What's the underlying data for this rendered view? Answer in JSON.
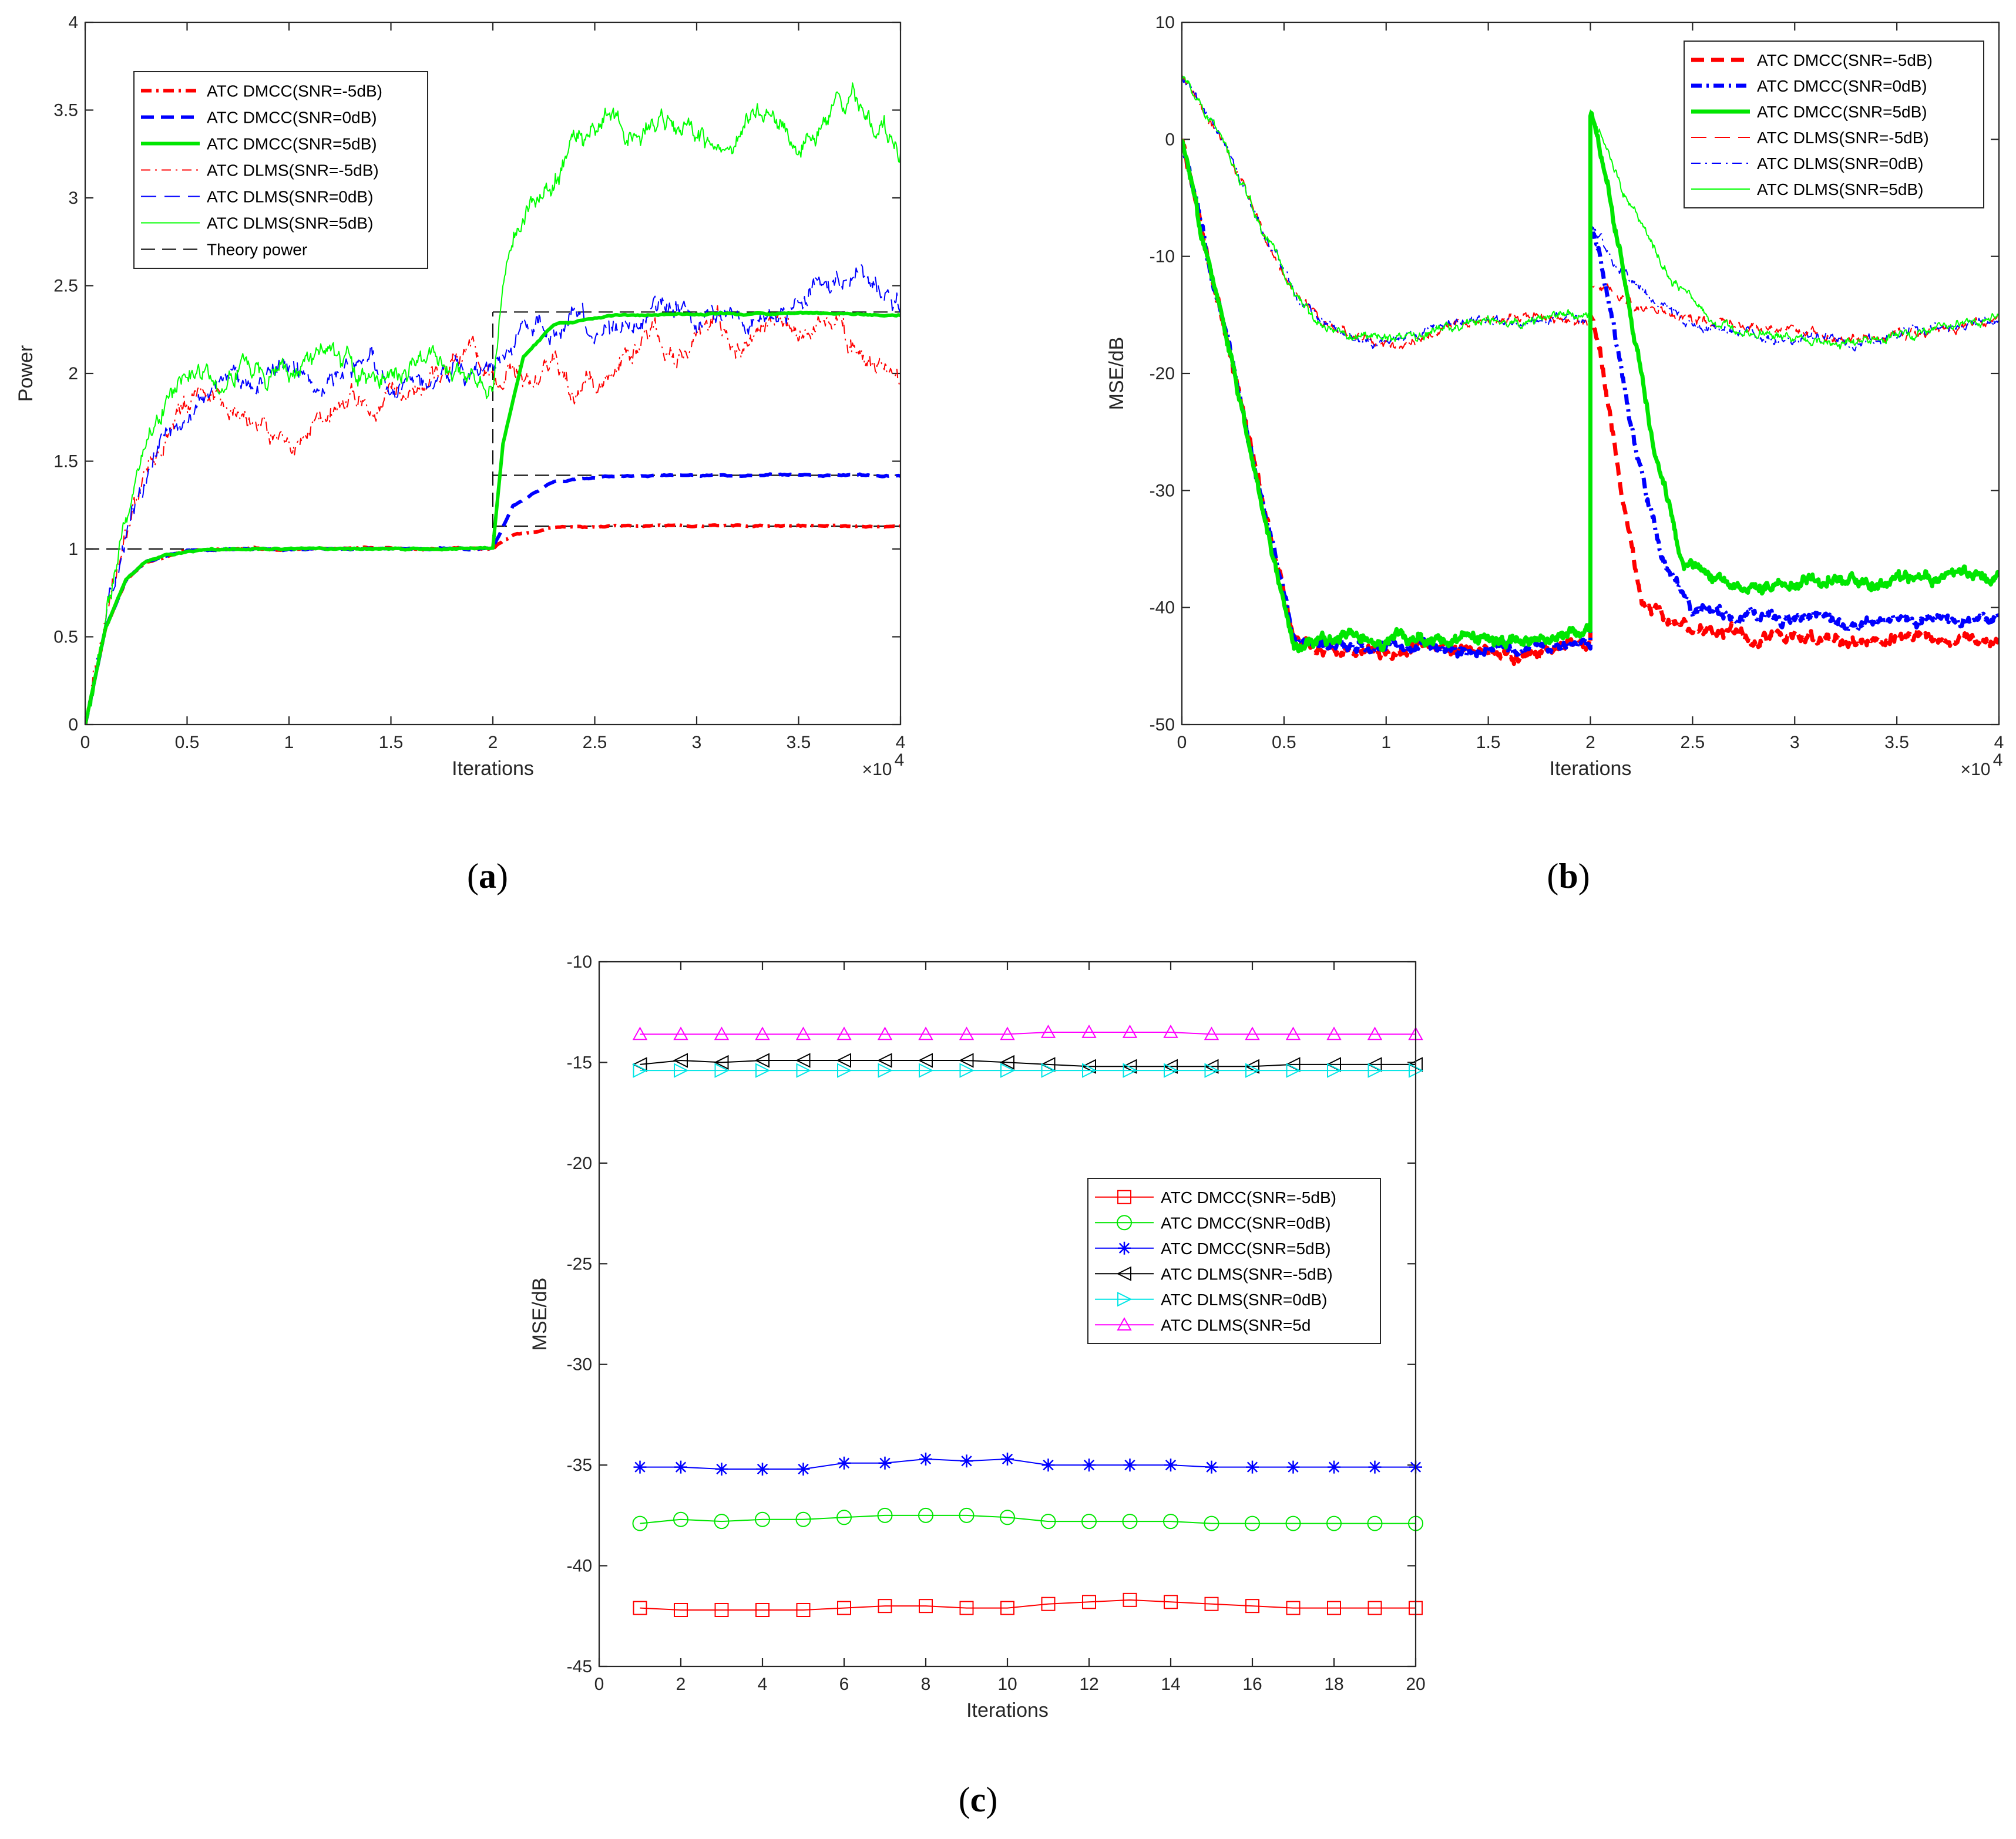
{
  "figure": {
    "panel_labels": [
      {
        "open": "(",
        "letter": "a",
        "close": ")"
      },
      {
        "open": "(",
        "letter": "b",
        "close": ")"
      },
      {
        "open": "(",
        "letter": "c",
        "close": ")"
      }
    ]
  },
  "colors": {
    "red": "#ff0000",
    "blue": "#0000ff",
    "green": "#00e600",
    "green_dlms": "#00ff00",
    "black": "#000000",
    "cyan": "#00e5e5",
    "magenta": "#ff00ff",
    "axis": "#262626"
  },
  "chart_data": [
    {
      "id": "a",
      "type": "line",
      "xlabel": "Iterations",
      "ylabel": "Power",
      "exponent_label": "×10",
      "exponent_power": "4",
      "xlim": [
        0,
        4
      ],
      "ylim": [
        0,
        4
      ],
      "xticks": [
        "0",
        "0.5",
        "1",
        "1.5",
        "2",
        "2.5",
        "3",
        "3.5",
        "4"
      ],
      "yticks": [
        "0",
        "0.5",
        "1",
        "1.5",
        "2",
        "2.5",
        "3",
        "3.5",
        "4"
      ],
      "legend_position": "top-left",
      "series": [
        {
          "name": "ATC DMCC(SNR=-5dB)",
          "color": "red",
          "style": "dashdot",
          "width": "bold",
          "x": [
            0,
            0.1,
            0.2,
            0.3,
            0.5,
            0.8,
            1.2,
            1.6,
            2.0,
            2.1,
            2.3,
            2.6,
            3.0,
            3.5,
            4.0
          ],
          "y": [
            0,
            0.55,
            0.82,
            0.93,
            0.99,
            1.0,
            1.0,
            1.0,
            1.0,
            1.08,
            1.12,
            1.13,
            1.13,
            1.13,
            1.13
          ]
        },
        {
          "name": "ATC DMCC(SNR=0dB)",
          "color": "blue",
          "style": "dashed",
          "width": "bold",
          "x": [
            0,
            0.1,
            0.2,
            0.3,
            0.5,
            0.8,
            1.2,
            1.6,
            2.0,
            2.1,
            2.3,
            2.6,
            3.0,
            3.5,
            4.0
          ],
          "y": [
            0,
            0.55,
            0.82,
            0.93,
            0.99,
            1.0,
            1.0,
            1.0,
            1.0,
            1.25,
            1.38,
            1.42,
            1.42,
            1.42,
            1.42
          ]
        },
        {
          "name": "ATC DMCC(SNR=5dB)",
          "color": "green",
          "style": "solid",
          "width": "bold",
          "x": [
            0,
            0.1,
            0.2,
            0.3,
            0.5,
            0.8,
            1.2,
            1.6,
            2.0,
            2.05,
            2.15,
            2.3,
            2.6,
            3.0,
            3.5,
            4.0
          ],
          "y": [
            0,
            0.55,
            0.82,
            0.93,
            0.99,
            1.0,
            1.0,
            1.0,
            1.0,
            1.6,
            2.1,
            2.28,
            2.33,
            2.34,
            2.34,
            2.33
          ]
        },
        {
          "name": "ATC DLMS(SNR=-5dB)",
          "color": "red",
          "style": "dashdot",
          "width": "thin",
          "x": [
            0,
            0.1,
            0.2,
            0.3,
            0.4,
            0.5,
            0.6,
            0.7,
            0.8,
            0.9,
            1.0,
            1.1,
            1.2,
            1.3,
            1.4,
            1.5,
            1.6,
            1.7,
            1.8,
            1.9,
            2.0,
            2.1,
            2.2,
            2.3,
            2.4,
            2.5,
            2.6,
            2.7,
            2.8,
            2.9,
            3.0,
            3.1,
            3.2,
            3.3,
            3.4,
            3.5,
            3.6,
            3.7,
            3.8,
            3.9,
            4.0
          ],
          "y": [
            0,
            0.6,
            1.1,
            1.45,
            1.7,
            1.85,
            1.95,
            1.8,
            1.75,
            1.65,
            1.6,
            1.65,
            1.8,
            1.9,
            1.75,
            1.9,
            1.85,
            2.0,
            2.05,
            2.1,
            1.95,
            2.0,
            1.95,
            2.05,
            1.9,
            1.95,
            2.05,
            2.2,
            2.25,
            2.1,
            2.2,
            2.3,
            2.15,
            2.25,
            2.3,
            2.2,
            2.25,
            2.3,
            2.1,
            2.0,
            1.98
          ]
        },
        {
          "name": "ATC DLMS(SNR=0dB)",
          "color": "blue",
          "style": "dashed",
          "width": "thin",
          "x": [
            0,
            0.1,
            0.2,
            0.3,
            0.4,
            0.5,
            0.6,
            0.7,
            0.8,
            0.9,
            1.0,
            1.1,
            1.2,
            1.3,
            1.4,
            1.5,
            1.6,
            1.7,
            1.8,
            1.9,
            2.0,
            2.1,
            2.2,
            2.3,
            2.4,
            2.5,
            2.6,
            2.7,
            2.8,
            2.9,
            3.0,
            3.1,
            3.2,
            3.3,
            3.4,
            3.5,
            3.6,
            3.7,
            3.8,
            3.9,
            4.0
          ],
          "y": [
            0,
            0.6,
            1.1,
            1.45,
            1.7,
            1.75,
            1.9,
            2.0,
            1.95,
            2.0,
            2.05,
            1.95,
            2.0,
            2.05,
            2.1,
            1.95,
            1.9,
            2.0,
            2.05,
            1.95,
            2.0,
            2.2,
            2.3,
            2.25,
            2.35,
            2.2,
            2.25,
            2.3,
            2.35,
            2.4,
            2.3,
            2.35,
            2.4,
            2.3,
            2.35,
            2.4,
            2.5,
            2.55,
            2.6,
            2.45,
            2.4
          ]
        },
        {
          "name": "ATC DLMS(SNR=5dB)",
          "color": "green_dlms",
          "style": "solid",
          "width": "thin",
          "x": [
            0,
            0.1,
            0.2,
            0.3,
            0.4,
            0.5,
            0.6,
            0.7,
            0.8,
            0.9,
            1.0,
            1.1,
            1.2,
            1.3,
            1.4,
            1.5,
            1.6,
            1.7,
            1.8,
            1.9,
            2.0,
            2.05,
            2.1,
            2.2,
            2.3,
            2.4,
            2.5,
            2.6,
            2.7,
            2.8,
            2.9,
            3.0,
            3.1,
            3.2,
            3.3,
            3.4,
            3.5,
            3.6,
            3.7,
            3.8,
            3.9,
            4.0
          ],
          "y": [
            0,
            0.6,
            1.2,
            1.6,
            1.85,
            2.0,
            2.05,
            1.95,
            2.05,
            1.95,
            2.0,
            2.1,
            2.15,
            2.05,
            2.0,
            1.95,
            2.05,
            2.1,
            2.0,
            2.05,
            1.95,
            2.4,
            2.8,
            3.0,
            3.1,
            3.3,
            3.4,
            3.45,
            3.35,
            3.45,
            3.4,
            3.35,
            3.3,
            3.35,
            3.5,
            3.45,
            3.3,
            3.4,
            3.5,
            3.55,
            3.4,
            3.3
          ]
        },
        {
          "name": "Theory power",
          "color": "black",
          "style": "dashed",
          "width": "thin",
          "segments": [
            {
              "x": [
                0,
                2.0
              ],
              "y": [
                1,
                1
              ]
            },
            {
              "x": [
                2.0,
                2.0
              ],
              "y": [
                1,
                2.35
              ]
            },
            {
              "x": [
                2.0,
                4.0
              ],
              "y": [
                2.35,
                2.35
              ]
            },
            {
              "x": [
                2.0,
                4.0
              ],
              "y": [
                1.42,
                1.42
              ]
            },
            {
              "x": [
                2.0,
                4.0
              ],
              "y": [
                1.13,
                1.13
              ]
            }
          ]
        }
      ]
    },
    {
      "id": "b",
      "type": "line",
      "xlabel": "Iterations",
      "ylabel": "MSE/dB",
      "exponent_label": "×10",
      "exponent_power": "4",
      "xlim": [
        0,
        4
      ],
      "ylim": [
        -50,
        10
      ],
      "xticks": [
        "0",
        "0.5",
        "1",
        "1.5",
        "2",
        "2.5",
        "3",
        "3.5",
        "4"
      ],
      "yticks": [
        "-50",
        "-40",
        "-30",
        "-20",
        "-10",
        "0",
        "10"
      ],
      "legend_position": "top-right",
      "series": [
        {
          "name": "ATC DMCC(SNR=-5dB)",
          "color": "red",
          "style": "dashed",
          "width": "bold",
          "x": [
            0,
            0.55,
            0.6,
            0.8,
            1.0,
            1.2,
            1.4,
            1.6,
            1.8,
            2.0,
            2.0,
            2.05,
            2.15,
            2.25,
            2.4,
            2.6,
            2.8,
            3.0,
            3.2,
            3.4,
            3.6,
            3.8,
            4.0
          ],
          "y": [
            0,
            -43,
            -43.5,
            -43.5,
            -44,
            -43,
            -43.5,
            -44,
            -43.5,
            -43,
            -15,
            -18,
            -30,
            -39,
            -41.5,
            -42,
            -42.5,
            -42.5,
            -43,
            -43,
            -42.5,
            -43,
            -42.5
          ]
        },
        {
          "name": "ATC DMCC(SNR=0dB)",
          "color": "blue",
          "style": "dashdot",
          "width": "bold",
          "x": [
            0,
            0.55,
            0.6,
            0.8,
            1.0,
            1.2,
            1.4,
            1.6,
            1.8,
            2.0,
            2.0,
            2.05,
            2.2,
            2.35,
            2.5,
            2.7,
            2.9,
            3.1,
            3.3,
            3.5,
            3.7,
            3.9,
            4.0
          ],
          "y": [
            0,
            -43,
            -43,
            -43,
            -43.5,
            -43,
            -44,
            -43.5,
            -43,
            -43,
            -7,
            -10,
            -25,
            -36,
            -40,
            -40.5,
            -41,
            -41,
            -41.5,
            -41,
            -41,
            -41.5,
            -41
          ]
        },
        {
          "name": "ATC DMCC(SNR=5dB)",
          "color": "green",
          "style": "solid",
          "width": "bold",
          "x": [
            0,
            0.55,
            0.6,
            0.8,
            1.0,
            1.2,
            1.4,
            1.6,
            1.8,
            2.0,
            2.0,
            2.1,
            2.3,
            2.45,
            2.6,
            2.8,
            3.0,
            3.2,
            3.4,
            3.6,
            3.8,
            4.0
          ],
          "y": [
            0,
            -43.5,
            -43,
            -42.5,
            -43,
            -42.5,
            -43,
            -43,
            -42.5,
            -42,
            2,
            -5,
            -25,
            -36,
            -37.5,
            -38,
            -38,
            -37.5,
            -38,
            -37.5,
            -37,
            -37.5
          ]
        },
        {
          "name": "ATC DLMS(SNR=-5dB)",
          "color": "red",
          "style": "dashed",
          "width": "thin",
          "x": [
            0,
            0.2,
            0.4,
            0.55,
            0.7,
            0.9,
            1.1,
            1.3,
            1.5,
            1.7,
            1.9,
            2.0,
            2.0,
            2.2,
            2.4,
            2.6,
            2.8,
            3.0,
            3.2,
            3.4,
            3.6,
            3.8,
            4.0
          ],
          "y": [
            5.5,
            0,
            -8,
            -13,
            -16,
            -17,
            -17.5,
            -16,
            -15.5,
            -15,
            -15.5,
            -16,
            -12,
            -14,
            -15,
            -15.5,
            -16,
            -16.5,
            -17,
            -17,
            -16.5,
            -16,
            -15.5
          ]
        },
        {
          "name": "ATC DLMS(SNR=0dB)",
          "color": "blue",
          "style": "dashdot",
          "width": "thin",
          "x": [
            0,
            0.2,
            0.4,
            0.55,
            0.7,
            0.9,
            1.1,
            1.3,
            1.5,
            1.7,
            1.9,
            2.0,
            2.0,
            2.1,
            2.3,
            2.5,
            2.7,
            2.9,
            3.1,
            3.3,
            3.5,
            3.7,
            3.9,
            4.0
          ],
          "y": [
            5.5,
            0,
            -8,
            -13,
            -16,
            -17.5,
            -17,
            -16,
            -15,
            -15.5,
            -15,
            -15,
            -7,
            -10,
            -14,
            -16,
            -16.5,
            -17,
            -17,
            -17.5,
            -16.5,
            -16,
            -15.5,
            -15.5
          ]
        },
        {
          "name": "ATC DLMS(SNR=5dB)",
          "color": "green_dlms",
          "style": "solid",
          "width": "thin",
          "x": [
            0,
            0.2,
            0.4,
            0.55,
            0.7,
            0.9,
            1.1,
            1.3,
            1.5,
            1.7,
            1.9,
            2.0,
            2.0,
            2.2,
            2.4,
            2.6,
            2.8,
            3.0,
            3.2,
            3.4,
            3.6,
            3.8,
            4.0
          ],
          "y": [
            5.5,
            0,
            -8,
            -13,
            -16,
            -17,
            -17,
            -16,
            -15.5,
            -15.5,
            -15,
            -15,
            2.5,
            -6,
            -12,
            -15.5,
            -16.5,
            -17,
            -17.5,
            -17,
            -16.5,
            -16,
            -15
          ]
        }
      ]
    },
    {
      "id": "c",
      "type": "line",
      "xlabel": "Iterations",
      "ylabel": "MSE/dB",
      "xlim": [
        0,
        20
      ],
      "ylim": [
        -45,
        -10
      ],
      "xticks": [
        "0",
        "2",
        "4",
        "6",
        "8",
        "10",
        "12",
        "14",
        "16",
        "18",
        "20"
      ],
      "yticks": [
        "-45",
        "-40",
        "-35",
        "-30",
        "-25",
        "-20",
        "-15",
        "-10"
      ],
      "legend_position": "center-right",
      "x": [
        1,
        2,
        3,
        4,
        5,
        6,
        7,
        8,
        9,
        10,
        11,
        12,
        13,
        14,
        15,
        16,
        17,
        18,
        19,
        20
      ],
      "series": [
        {
          "name": "ATC DMCC(SNR=-5dB)",
          "color": "red",
          "marker": "square",
          "values": [
            -42.1,
            -42.2,
            -42.2,
            -42.2,
            -42.2,
            -42.1,
            -42.0,
            -42.0,
            -42.1,
            -42.1,
            -41.9,
            -41.8,
            -41.7,
            -41.8,
            -41.9,
            -42.0,
            -42.1,
            -42.1,
            -42.1,
            -42.1
          ]
        },
        {
          "name": "ATC DMCC(SNR=0dB)",
          "color": "green",
          "marker": "circle",
          "values": [
            -37.9,
            -37.7,
            -37.8,
            -37.7,
            -37.7,
            -37.6,
            -37.5,
            -37.5,
            -37.5,
            -37.6,
            -37.8,
            -37.8,
            -37.8,
            -37.8,
            -37.9,
            -37.9,
            -37.9,
            -37.9,
            -37.9,
            -37.9
          ]
        },
        {
          "name": "ATC DMCC(SNR=5dB)",
          "color": "blue",
          "marker": "star",
          "values": [
            -35.1,
            -35.1,
            -35.2,
            -35.2,
            -35.2,
            -34.9,
            -34.9,
            -34.7,
            -34.8,
            -34.7,
            -35.0,
            -35.0,
            -35.0,
            -35.0,
            -35.1,
            -35.1,
            -35.1,
            -35.1,
            -35.1,
            -35.1
          ]
        },
        {
          "name": "ATC DLMS(SNR=-5dB)",
          "color": "black",
          "marker": "triangle-left",
          "values": [
            -15.1,
            -14.9,
            -15.0,
            -14.9,
            -14.9,
            -14.9,
            -14.9,
            -14.9,
            -14.9,
            -15.0,
            -15.1,
            -15.2,
            -15.2,
            -15.2,
            -15.2,
            -15.2,
            -15.1,
            -15.1,
            -15.1,
            -15.1
          ]
        },
        {
          "name": "ATC DLMS(SNR=0dB)",
          "color": "cyan",
          "marker": "triangle-right",
          "values": [
            -15.4,
            -15.4,
            -15.4,
            -15.4,
            -15.4,
            -15.4,
            -15.4,
            -15.4,
            -15.4,
            -15.4,
            -15.4,
            -15.4,
            -15.4,
            -15.4,
            -15.4,
            -15.4,
            -15.4,
            -15.4,
            -15.4,
            -15.4
          ]
        },
        {
          "name": "ATC DLMS(SNR=5d",
          "color": "magenta",
          "marker": "triangle-up",
          "values": [
            -13.6,
            -13.6,
            -13.6,
            -13.6,
            -13.6,
            -13.6,
            -13.6,
            -13.6,
            -13.6,
            -13.6,
            -13.5,
            -13.5,
            -13.5,
            -13.5,
            -13.6,
            -13.6,
            -13.6,
            -13.6,
            -13.6,
            -13.6
          ]
        }
      ]
    }
  ]
}
